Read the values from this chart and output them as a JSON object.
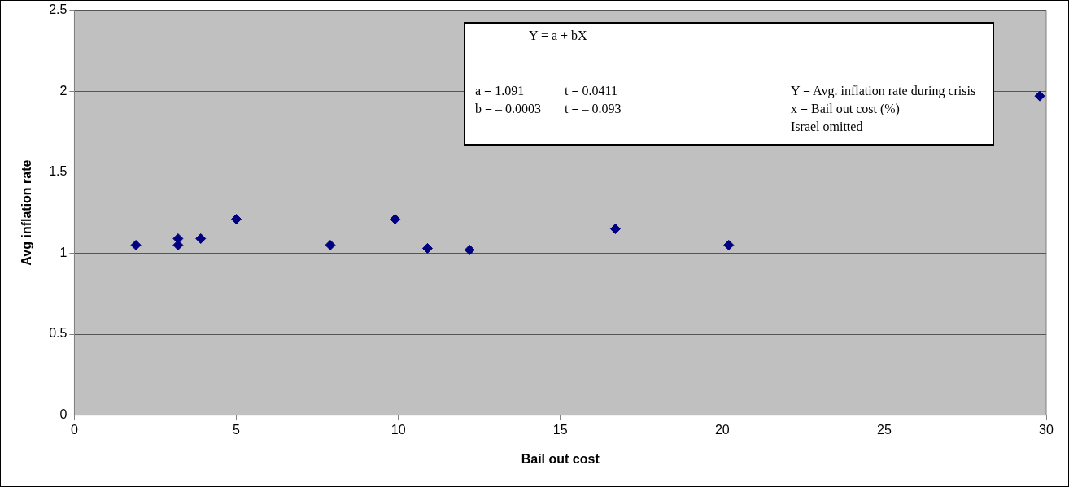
{
  "chart_data": {
    "type": "scatter",
    "xlabel": "Bail out cost",
    "ylabel": "Avg inflation rate",
    "x": [
      1.9,
      3.2,
      3.2,
      3.9,
      5.0,
      7.9,
      9.9,
      10.9,
      12.2,
      16.7,
      20.2,
      29.8
    ],
    "series": [
      {
        "color": "#000080",
        "values": [
          1.05,
          1.09,
          1.05,
          1.09,
          1.21,
          1.05,
          1.21,
          1.03,
          1.02,
          1.15,
          1.05,
          1.97
        ]
      }
    ],
    "xlim": [
      0,
      30
    ],
    "xticks": [
      0,
      5,
      10,
      15,
      20,
      25,
      30
    ],
    "ylim": [
      0,
      2.5
    ],
    "yticks": [
      0,
      0.5,
      1,
      1.5,
      2,
      2.5
    ],
    "grid": "y",
    "legend": false,
    "marker": "diamond",
    "annotations": [
      "Y = a + bX",
      "a = 1.091",
      "t = 0.0411",
      "Y = Avg. inflation rate during crisis",
      "b = – 0.0003",
      "t = – 0.093",
      "x = Bail out cost (%)",
      "Israel omitted"
    ]
  }
}
